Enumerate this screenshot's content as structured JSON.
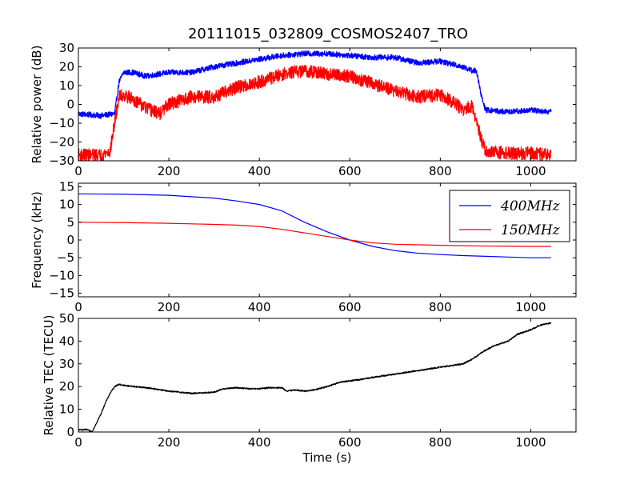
{
  "figure": {
    "title": "20111015_032809_COSMOS2407_TRO"
  },
  "colors": {
    "series_400": "#0000ff",
    "series_150": "#ff0000",
    "tec": "#000000",
    "axes": "#000000",
    "background": "#ffffff"
  },
  "chart_data": [
    {
      "type": "line",
      "title": "20111015_032809_COSMOS2407_TRO",
      "xlabel": "",
      "ylabel": "Relative power (dB)",
      "xlim": [
        0,
        1100
      ],
      "ylim": [
        -30,
        30
      ],
      "xticks": [
        0,
        200,
        400,
        600,
        800,
        1000
      ],
      "xtick_labels": [
        "0",
        "200",
        "400",
        "600",
        "800",
        "1000"
      ],
      "yticks": [
        -30,
        -20,
        -10,
        0,
        10,
        20,
        30
      ],
      "ytick_labels": [
        "−30",
        "−20",
        "−10",
        "0",
        "10",
        "20",
        "30"
      ],
      "grid": false,
      "series": [
        {
          "color": "#0000ff",
          "noise": 1.5,
          "x": [
            0,
            50,
            80,
            90,
            100,
            120,
            150,
            200,
            250,
            300,
            350,
            400,
            450,
            500,
            550,
            600,
            650,
            700,
            750,
            800,
            850,
            870,
            880,
            890,
            900,
            950,
            1000,
            1045
          ],
          "y": [
            -5,
            -6,
            -5,
            12,
            17,
            17,
            15,
            17,
            17,
            20,
            22,
            24,
            26,
            27,
            27,
            26,
            25,
            25,
            22,
            23,
            20,
            18,
            18,
            5,
            -3,
            -4,
            -3,
            -4
          ]
        },
        {
          "color": "#ff0000",
          "noise": 3.5,
          "x": [
            0,
            50,
            70,
            80,
            90,
            100,
            120,
            150,
            180,
            200,
            250,
            300,
            350,
            400,
            450,
            500,
            550,
            600,
            650,
            700,
            750,
            800,
            830,
            850,
            870,
            880,
            890,
            900,
            950,
            1000,
            1045
          ],
          "y": [
            -27,
            -27,
            -25,
            -10,
            4,
            5,
            3,
            -2,
            -5,
            0,
            4,
            4,
            9,
            12,
            16,
            18,
            16,
            15,
            11,
            7,
            4,
            5,
            1,
            -3,
            -1,
            -10,
            -18,
            -25,
            -26,
            -26,
            -27
          ]
        }
      ]
    },
    {
      "type": "line",
      "xlabel": "",
      "ylabel": "Frequency (kHz)",
      "xlim": [
        0,
        1100
      ],
      "ylim": [
        -16,
        16
      ],
      "xticks": [
        0,
        200,
        400,
        600,
        800,
        1000
      ],
      "xtick_labels": [
        "0",
        "200",
        "400",
        "600",
        "800",
        "1000"
      ],
      "yticks": [
        -15,
        -10,
        -5,
        0,
        5,
        10,
        15
      ],
      "ytick_labels": [
        "−15",
        "−10",
        "−5",
        "0",
        "5",
        "10",
        "15"
      ],
      "grid": false,
      "legend": {
        "position": "top-right"
      },
      "series": [
        {
          "name": "400MHz",
          "color": "#0000ff",
          "noise": 0,
          "x": [
            0,
            100,
            200,
            300,
            350,
            400,
            450,
            500,
            550,
            600,
            650,
            700,
            750,
            800,
            850,
            900,
            950,
            1000,
            1045
          ],
          "y": [
            13,
            12.9,
            12.6,
            11.8,
            11.0,
            10.0,
            8.2,
            5.0,
            2.3,
            0,
            -1.8,
            -3.0,
            -3.7,
            -4.1,
            -4.4,
            -4.6,
            -4.8,
            -5.0,
            -5.0
          ]
        },
        {
          "name": "150MHz",
          "color": "#ff0000",
          "noise": 0,
          "x": [
            0,
            100,
            200,
            300,
            350,
            400,
            450,
            500,
            550,
            600,
            650,
            700,
            800,
            900,
            1000,
            1045
          ],
          "y": [
            5,
            4.9,
            4.7,
            4.4,
            4.2,
            3.8,
            3.0,
            2.0,
            1.0,
            0,
            -0.8,
            -1.2,
            -1.5,
            -1.7,
            -1.8,
            -1.8
          ]
        }
      ]
    },
    {
      "type": "line",
      "xlabel": "Time (s)",
      "ylabel": "Relative TEC (TECU)",
      "xlim": [
        0,
        1100
      ],
      "ylim": [
        0,
        50
      ],
      "xticks": [
        0,
        200,
        400,
        600,
        800,
        1000
      ],
      "xtick_labels": [
        "0",
        "200",
        "400",
        "600",
        "800",
        "1000"
      ],
      "yticks": [
        0,
        10,
        20,
        30,
        40,
        50
      ],
      "ytick_labels": [
        "0",
        "10",
        "20",
        "30",
        "40",
        "50"
      ],
      "grid": false,
      "series": [
        {
          "color": "#000000",
          "noise": 0.3,
          "x": [
            0,
            20,
            30,
            40,
            50,
            60,
            70,
            80,
            90,
            100,
            150,
            200,
            250,
            300,
            320,
            350,
            380,
            400,
            420,
            450,
            460,
            480,
            500,
            520,
            550,
            580,
            600,
            620,
            650,
            700,
            750,
            800,
            850,
            870,
            900,
            920,
            950,
            970,
            1000,
            1020,
            1045
          ],
          "y": [
            1,
            1,
            0,
            4,
            8,
            13,
            17,
            20,
            21,
            20.5,
            19.5,
            18,
            17,
            17.5,
            19,
            19.5,
            19,
            19,
            19.5,
            19.5,
            18,
            18.5,
            18,
            18.5,
            20,
            22,
            22.5,
            23,
            24,
            25.5,
            27,
            28.5,
            30,
            32,
            36,
            38,
            40,
            43,
            45,
            47,
            48
          ]
        }
      ]
    }
  ]
}
